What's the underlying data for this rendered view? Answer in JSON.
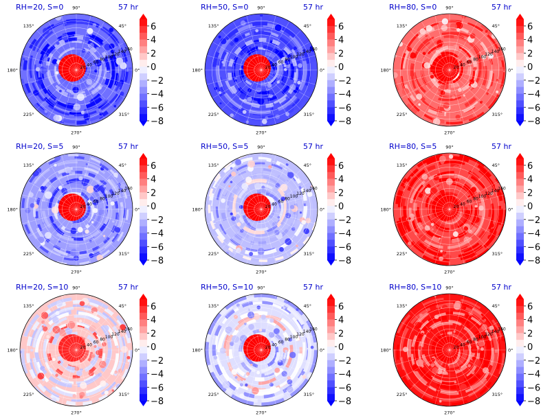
{
  "figure": {
    "time_label": "57 hr",
    "colors": {
      "title": "#0000cc",
      "positive_max": "#ff0000",
      "negative_max": "#0000ff",
      "neutral": "#ffffff"
    },
    "colorbar": {
      "ticks": [
        "6",
        "4",
        "2",
        "0",
        "−2",
        "−4",
        "−6",
        "−8"
      ],
      "range": [
        -8,
        7
      ],
      "extend": "both"
    },
    "angle_labels": [
      "90°",
      "45°",
      "0°",
      "315°",
      "270°",
      "225°",
      "180°",
      "135°"
    ],
    "radial_labels": [
      "20",
      "40",
      "60",
      "80",
      "100",
      "120",
      "140",
      "160"
    ]
  },
  "chart_data": [
    {
      "type": "heatmap",
      "projection": "polar",
      "title": "RH=20, S=0",
      "subtitle": "57 hr",
      "rh": 20,
      "s": 0,
      "r_range": [
        0,
        160
      ],
      "center_value": 7,
      "field_mean": -4.5
    },
    {
      "type": "heatmap",
      "projection": "polar",
      "title": "RH=50, S=0",
      "subtitle": "57 hr",
      "rh": 50,
      "s": 0,
      "r_range": [
        0,
        160
      ],
      "center_value": 7,
      "field_mean": -5.5
    },
    {
      "type": "heatmap",
      "projection": "polar",
      "title": "RH=80, S=0",
      "subtitle": "57 hr",
      "rh": 80,
      "s": 0,
      "r_range": [
        0,
        160
      ],
      "center_value": 7,
      "field_mean": 4.0
    },
    {
      "type": "heatmap",
      "projection": "polar",
      "title": "RH=20, S=5",
      "subtitle": "57 hr",
      "rh": 20,
      "s": 5,
      "r_range": [
        0,
        160
      ],
      "center_value": 7,
      "field_mean": -3.0
    },
    {
      "type": "heatmap",
      "projection": "polar",
      "title": "RH=50, S=5",
      "subtitle": "57 hr",
      "rh": 50,
      "s": 5,
      "r_range": [
        0,
        160
      ],
      "center_value": 7,
      "field_mean": -2.0
    },
    {
      "type": "heatmap",
      "projection": "polar",
      "title": "RH=80, S=5",
      "subtitle": "57 hr",
      "rh": 80,
      "s": 5,
      "r_range": [
        0,
        160
      ],
      "center_value": 7,
      "field_mean": 5.0
    },
    {
      "type": "heatmap",
      "projection": "polar",
      "title": "RH=20, S=10",
      "subtitle": "57 hr",
      "rh": 20,
      "s": 10,
      "r_range": [
        0,
        160
      ],
      "center_value": 6,
      "field_mean": 1.5
    },
    {
      "type": "heatmap",
      "projection": "polar",
      "title": "RH=50, S=10",
      "subtitle": "57 hr",
      "rh": 50,
      "s": 10,
      "r_range": [
        0,
        160
      ],
      "center_value": 7,
      "field_mean": -1.0
    },
    {
      "type": "heatmap",
      "projection": "polar",
      "title": "RH=80, S=10",
      "subtitle": "57 hr",
      "rh": 80,
      "s": 10,
      "r_range": [
        0,
        160
      ],
      "center_value": 7,
      "field_mean": 6.5
    }
  ]
}
